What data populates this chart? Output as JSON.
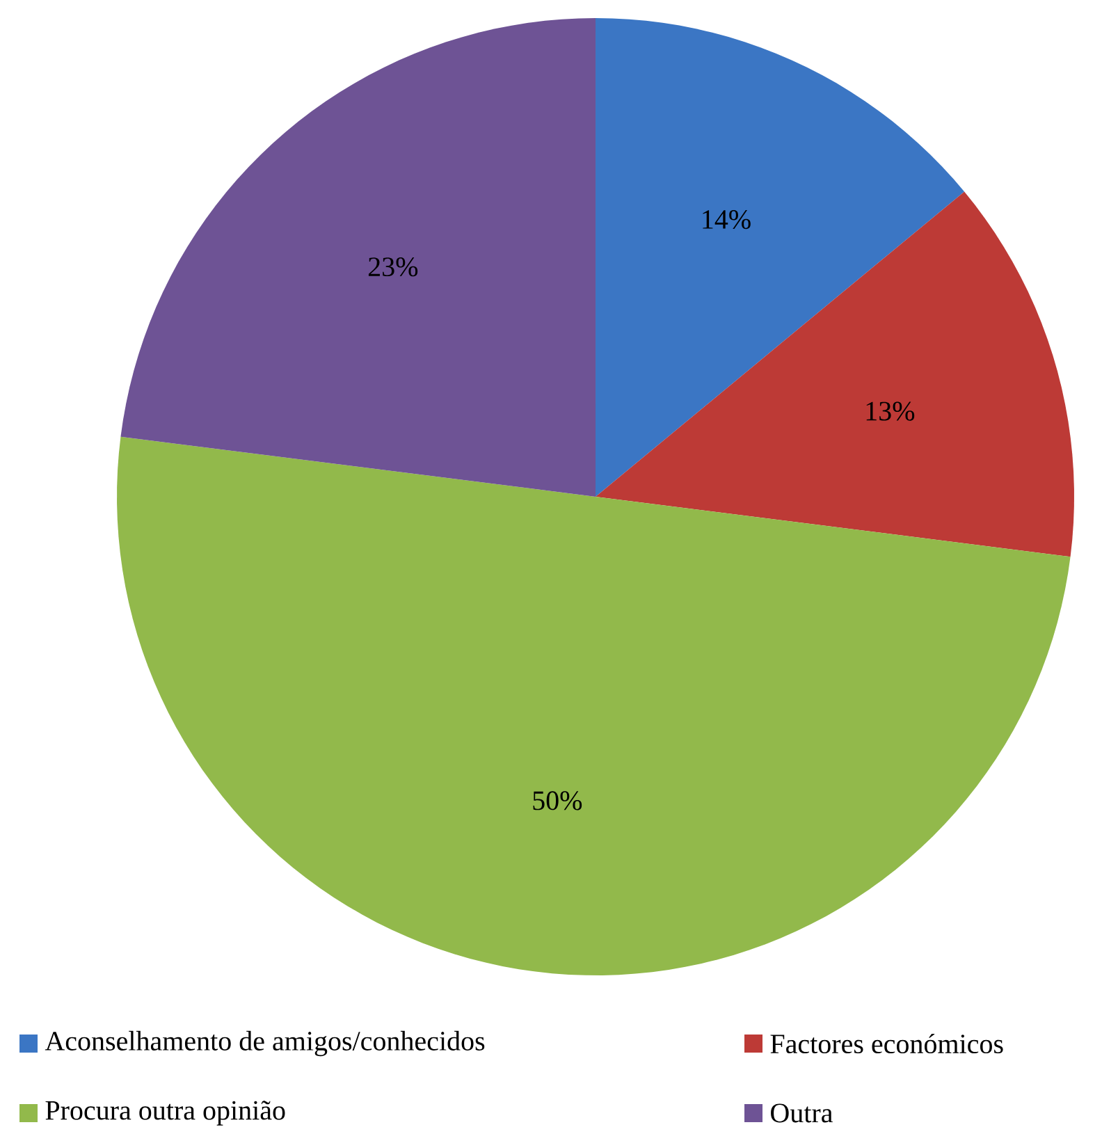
{
  "chart_data": {
    "type": "pie",
    "categories": [
      "Aconselhamento de amigos/conhecidos",
      "Factores económicos",
      "Procura outra opinião",
      "Outra"
    ],
    "values": [
      14,
      13,
      50,
      23
    ],
    "value_labels": [
      "14%",
      "13%",
      "50%",
      "23%"
    ],
    "colors": [
      "#3b76c4",
      "#bd3a36",
      "#92b94b",
      "#6e5395"
    ],
    "legend": "bottom"
  }
}
